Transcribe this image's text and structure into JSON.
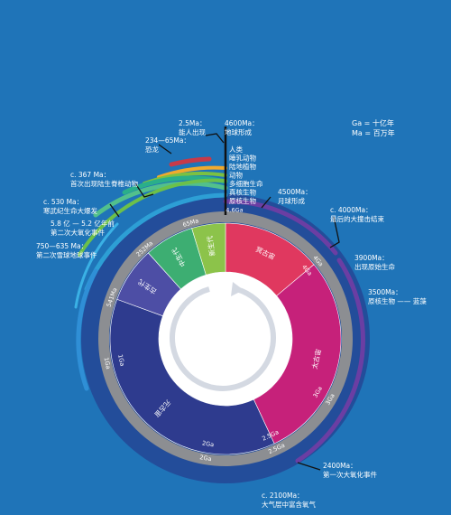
{
  "legend": {
    "line1": "Ga = 十亿年",
    "line2": "Ma = 百万年"
  },
  "eons": [
    {
      "label": "冥古宙",
      "start_ma": 4600,
      "end_ma": 4000,
      "color": "#e0385f"
    },
    {
      "label": "太古宙",
      "start_ma": 4000,
      "end_ma": 2500,
      "color": "#c6217a"
    },
    {
      "label": "元古宙",
      "start_ma": 2500,
      "end_ma": 541,
      "color": "#2e3b8e"
    },
    {
      "label": "古生代",
      "start_ma": 541,
      "end_ma": 252,
      "color": "#4d4ea5"
    },
    {
      "label": "中生代",
      "start_ma": 252,
      "end_ma": 66,
      "color": "#3dae72"
    },
    {
      "label": "新生代",
      "start_ma": 66,
      "end_ma": 0,
      "color": "#8cc34a"
    }
  ],
  "ticks": {
    "ring": [
      "4.6Ga",
      "4Ga",
      "3Ga",
      "2.5Ga",
      "2Ga",
      "1Ga",
      "541Ma",
      "252Ma",
      "65Ma"
    ],
    "inner": [
      "4Ga",
      "3Ga",
      "2.5Ga",
      "2Ga",
      "1Ga"
    ]
  },
  "top_stack": [
    "人类",
    "睡乳动物",
    "陆地植物",
    "动物",
    "多细胞生命",
    "真核生物",
    "原核生物"
  ],
  "annotations": {
    "human_appear": {
      "line1": "2.5Ma：",
      "line2": "能人出现"
    },
    "earth_formation": {
      "line1": "4600Ma：",
      "line2": "地球形成"
    },
    "dinosaurs": {
      "line1": "234—65Ma：",
      "line2": "恐龙"
    },
    "land_vertebrates": {
      "line1": "c. 367 Ma：",
      "line2": "首次出现陆生脊椎动物"
    },
    "cambrian": {
      "line1": "c. 530 Ma：",
      "line2": "寒武纪生命大爆发"
    },
    "second_oxygen": {
      "line1": "5.8 亿 — 5.2 亿年前",
      "line2": "第二次大氧化事件"
    },
    "snowball": {
      "line1": "750—635 Ma：",
      "line2": "第二次雪球地球事件"
    },
    "moon_formation": {
      "line1": "4500Ma：",
      "line2": "月球形成"
    },
    "bombardment_end": {
      "line1": "c. 4000Ma：",
      "line2": "最后的大撞击结束"
    },
    "first_life": {
      "line1": "3900Ma：",
      "line2": "出现原始生命"
    },
    "prokaryotes": {
      "line1": "3500Ma：",
      "line2": "原核生物 —— 蓝藻"
    },
    "first_oxygen": {
      "line1": "2400Ma：",
      "line2": "第一次大氧化事件"
    },
    "oxygen_in_air": {
      "line1": "c. 2100Ma：",
      "line2": "大气层中富含氧气"
    }
  }
}
